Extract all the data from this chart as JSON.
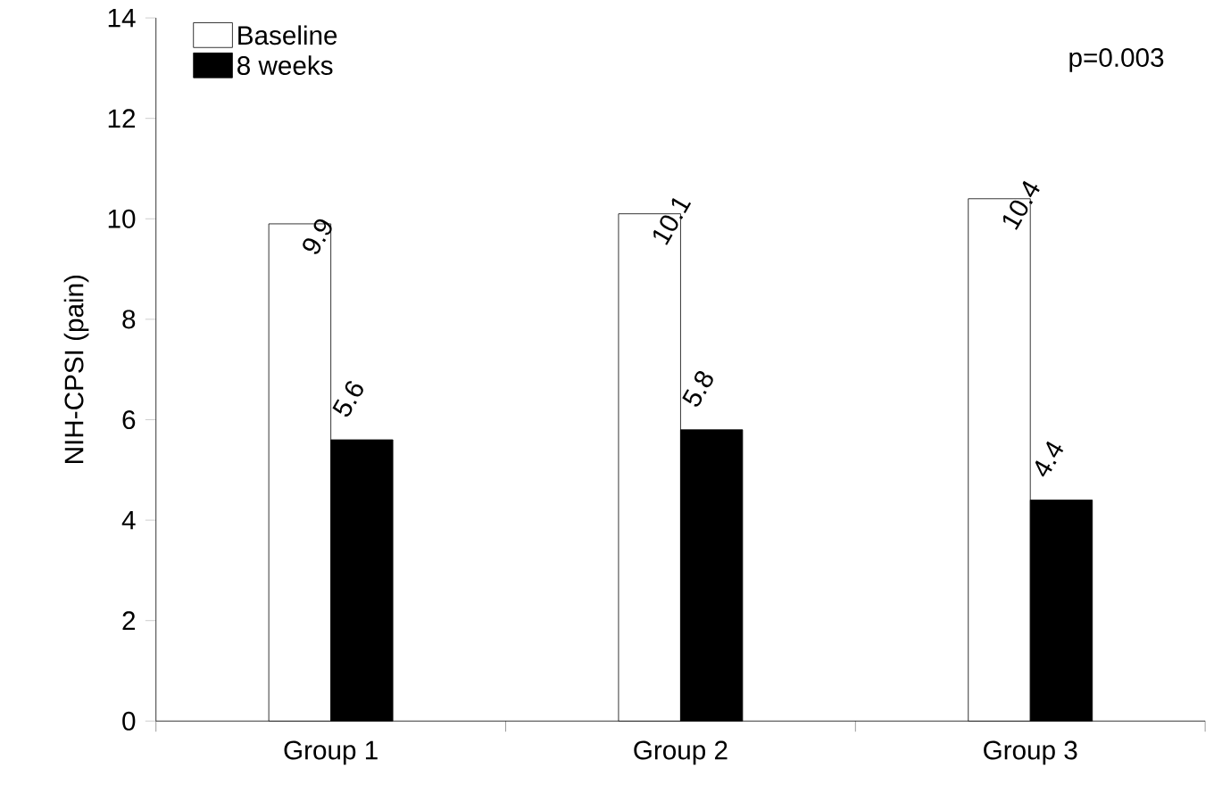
{
  "chart_data": {
    "type": "bar",
    "ylabel": "NIH-CPSI (pain)",
    "categories": [
      "Group 1",
      "Group 2",
      "Group 3"
    ],
    "series": [
      {
        "name": "Baseline",
        "color": "#ffffff",
        "values": [
          9.9,
          10.1,
          10.4
        ]
      },
      {
        "name": "8 weeks",
        "color": "#000000",
        "values": [
          5.6,
          5.8,
          4.4
        ]
      }
    ],
    "ylim": [
      0,
      14
    ],
    "yticks": [
      0,
      2,
      4,
      6,
      8,
      10,
      12,
      14
    ],
    "data_labels": true,
    "legend": "top left",
    "grid": false,
    "annotations": [
      "p=0.003"
    ]
  }
}
